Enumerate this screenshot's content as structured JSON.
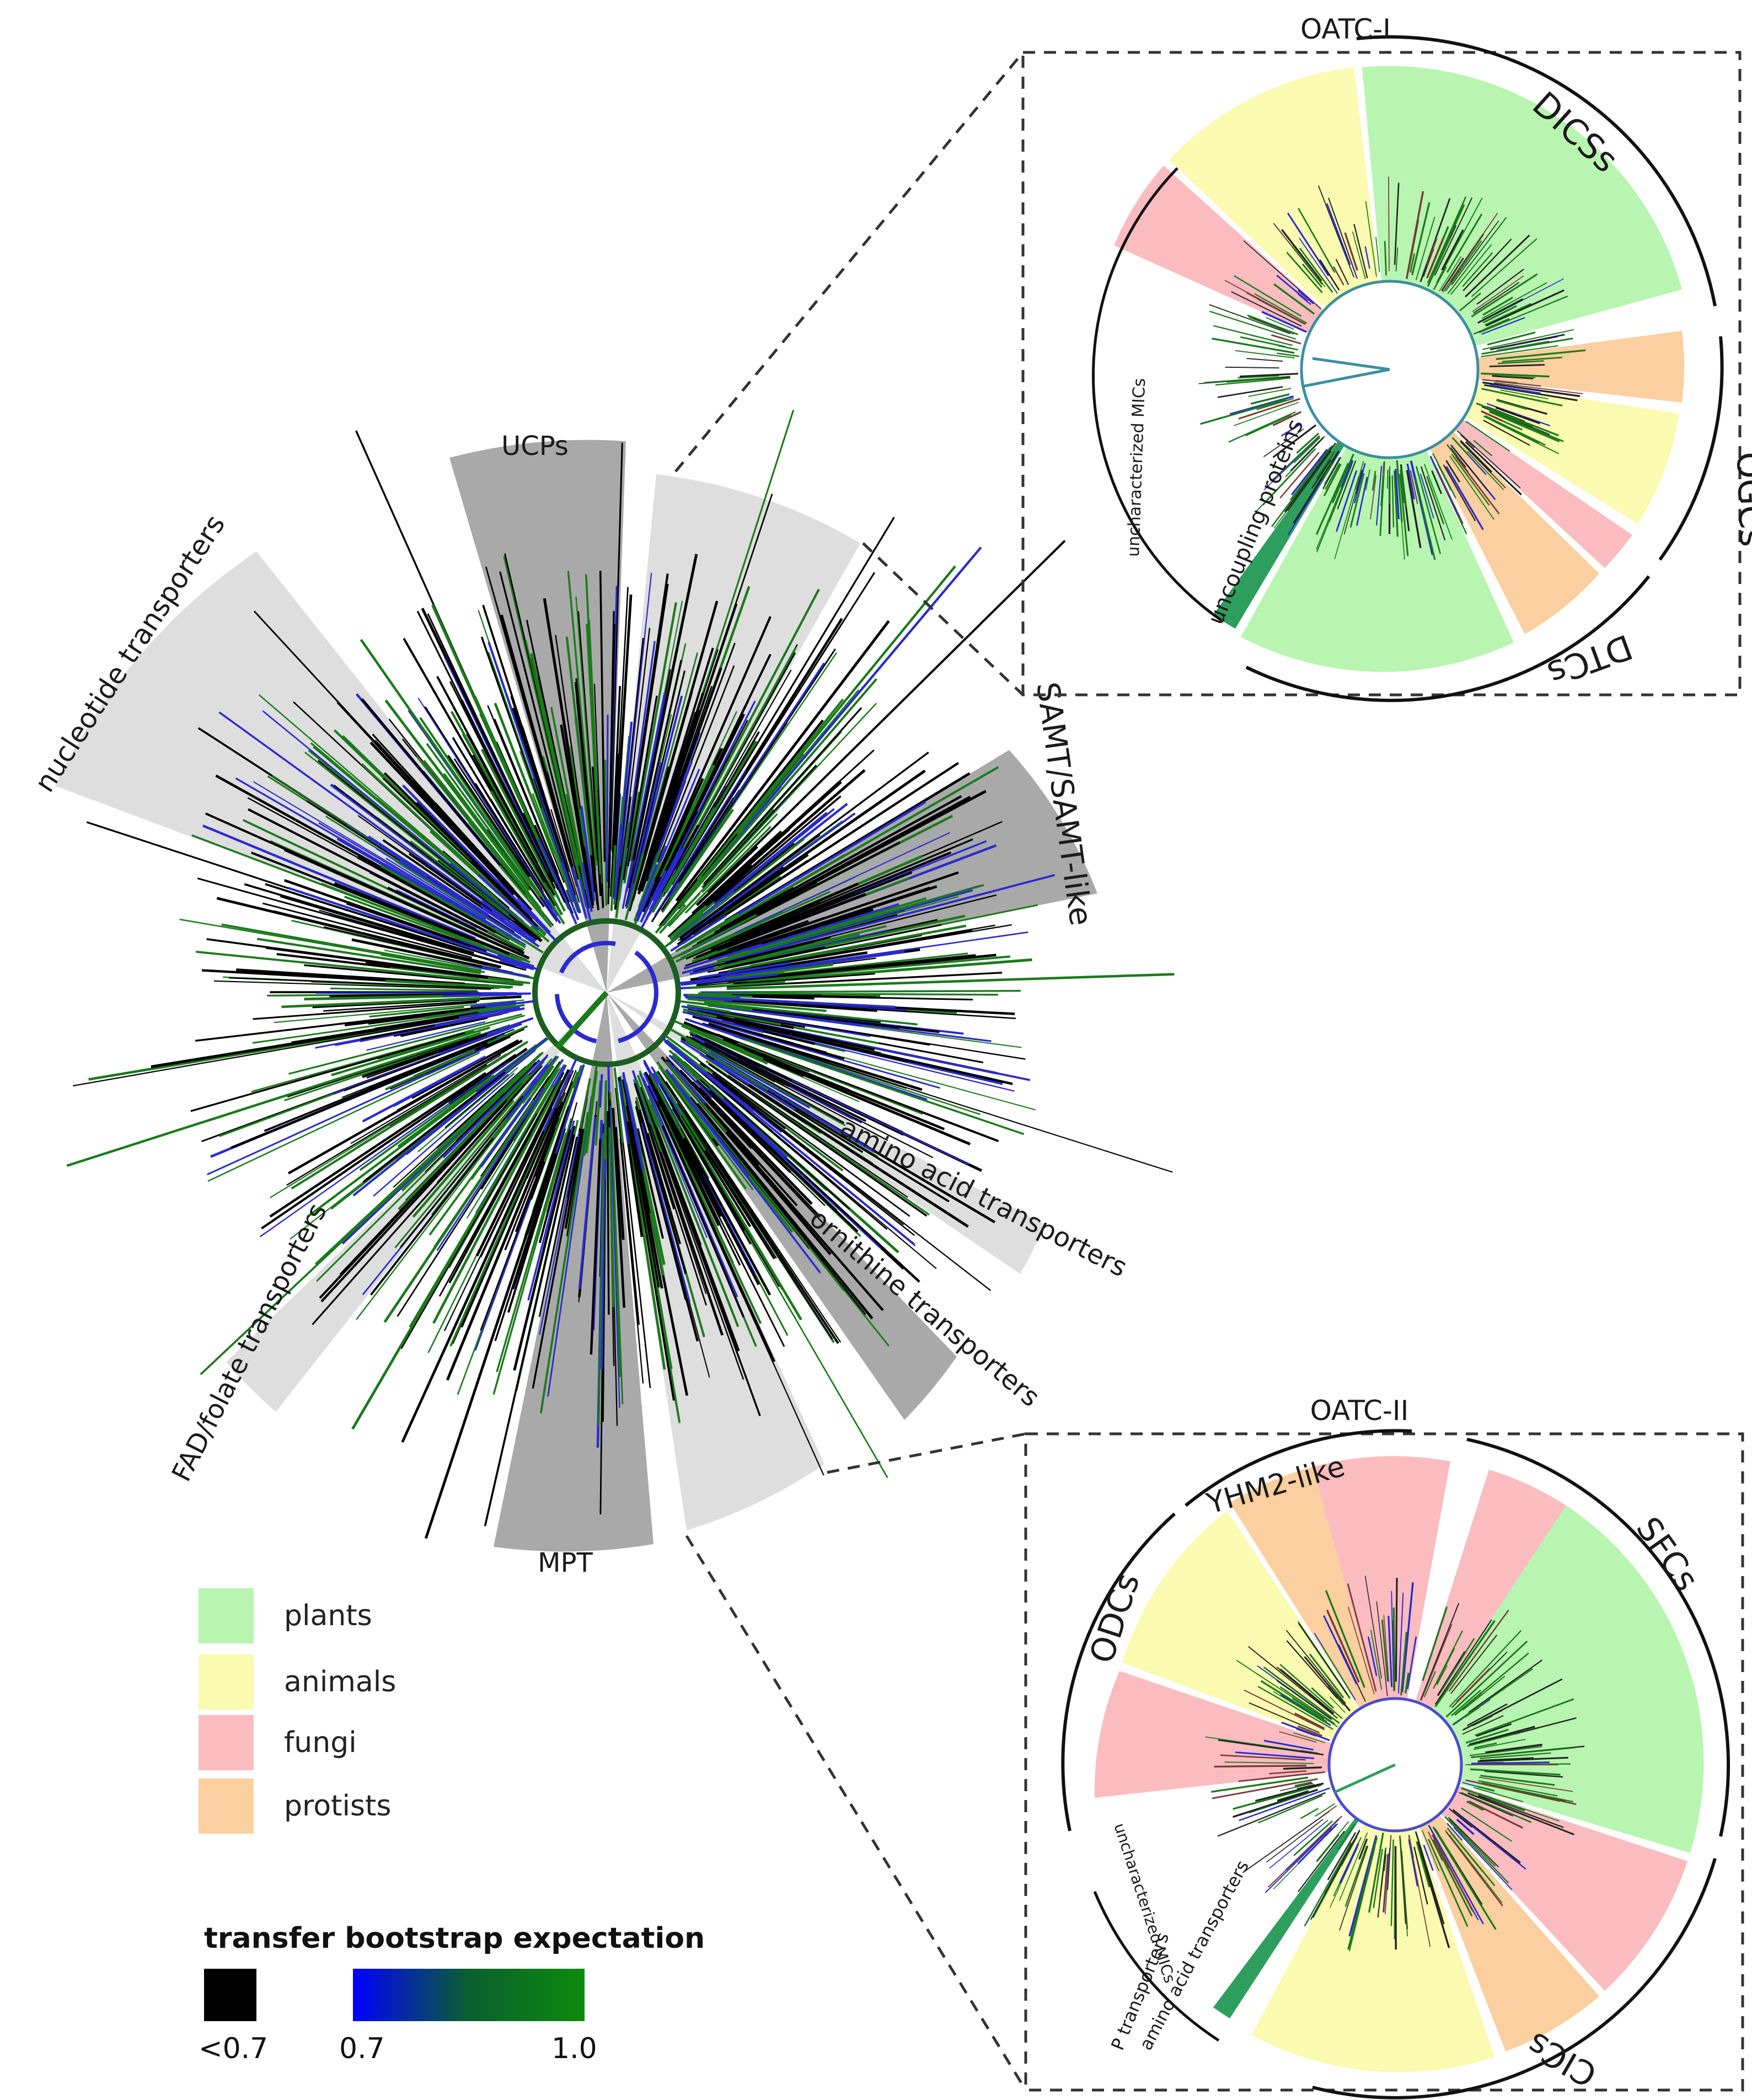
{
  "main_tree": {
    "clades": [
      {
        "label": "UCPs"
      },
      {
        "label": "SAMT/SAMT-like"
      },
      {
        "label": "amino acid transporters"
      },
      {
        "label": "ornithine transporters"
      },
      {
        "label": "MPT"
      },
      {
        "label": "FAD/folate transporters"
      },
      {
        "label": "nucleotide transporters"
      }
    ]
  },
  "inset_top": {
    "title": "OATC-I",
    "clades": [
      "DICSs",
      "OGCs",
      "DTCs",
      "uncoupling proteins",
      "uncharacterized MICs"
    ]
  },
  "inset_bottom": {
    "title": "OATC-II",
    "clades": [
      "YHM2-like",
      "SFCs",
      "CICs",
      "ODCs",
      "uncharacterized MICs",
      "P transporters",
      "amino acid transporters"
    ]
  },
  "legend": {
    "items": [
      {
        "label": "plants",
        "color": "#b8f5b0"
      },
      {
        "label": "animals",
        "color": "#fafab0"
      },
      {
        "label": "fungi",
        "color": "#fbbcc0"
      },
      {
        "label": "protists",
        "color": "#fbcf9f"
      }
    ],
    "tbe": {
      "title": "transfer bootstrap expectation",
      "low_label": "<0.7",
      "grad_start": "0.7",
      "grad_end": "1.0",
      "low_color": "#000000",
      "grad_colors": [
        "#0000ff",
        "#0d8a0d"
      ]
    }
  },
  "colors": {
    "sector_dark": "#a9a9a9",
    "sector_light": "#dedede",
    "branch_green": "#1b7a1b",
    "branch_blue": "#2a2ad0",
    "branch_black": "#000000"
  }
}
